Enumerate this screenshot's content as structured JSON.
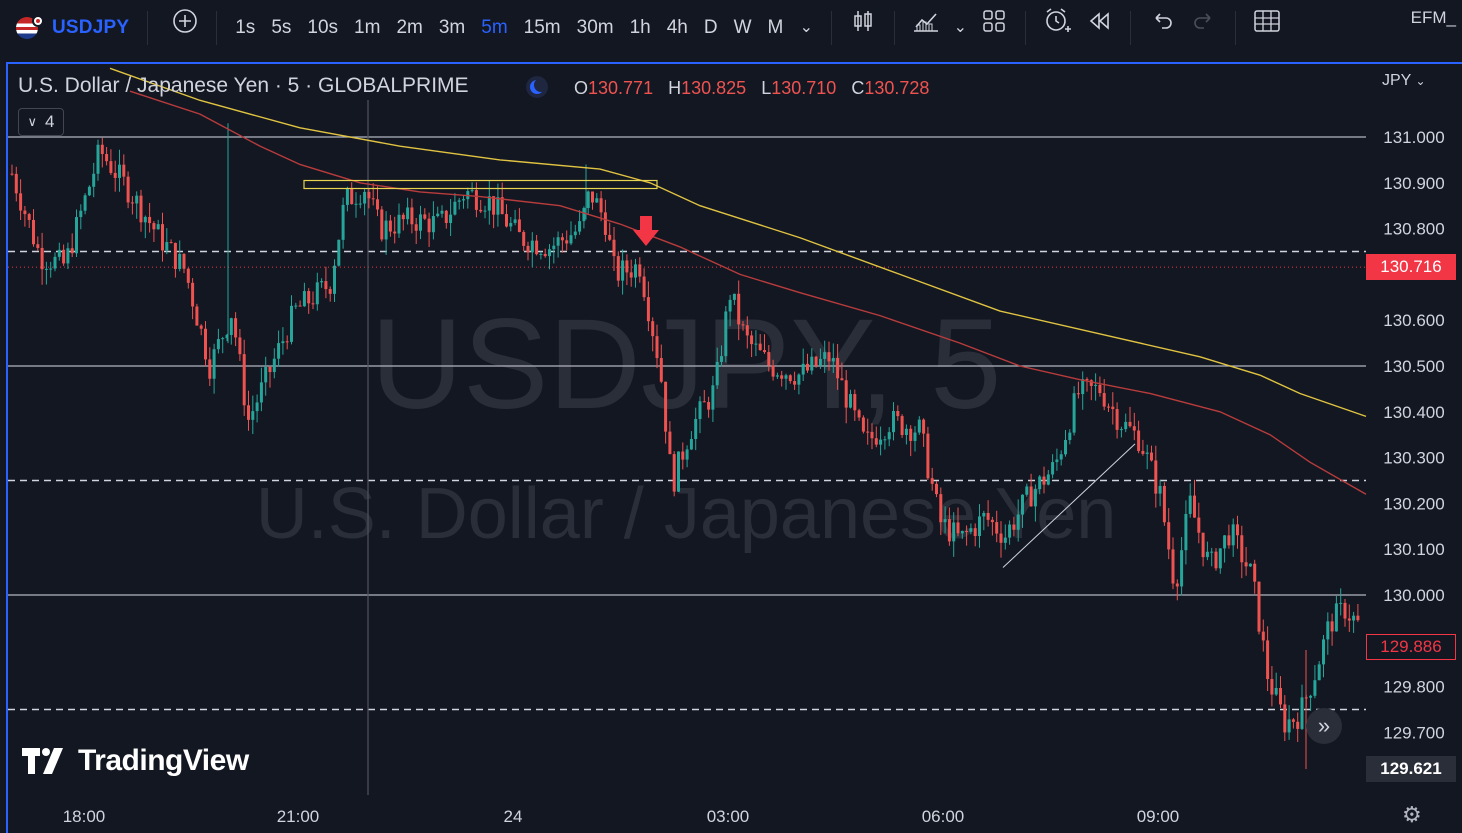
{
  "toolbar": {
    "symbol": "USDJPY",
    "intervals": [
      "1s",
      "5s",
      "10s",
      "1m",
      "2m",
      "3m",
      "5m",
      "15m",
      "30m",
      "1h",
      "4h",
      "D",
      "W",
      "M"
    ],
    "active_interval": "5m",
    "account": "EFM_"
  },
  "legend": {
    "title": "U.S. Dollar / Japanese Yen · 5 · GLOBALPRIME",
    "open_label": "O",
    "open": "130.771",
    "high_label": "H",
    "high": "130.825",
    "low_label": "L",
    "low": "130.710",
    "close_label": "C",
    "close": "130.728",
    "indicators_count": "4"
  },
  "watermark": {
    "symbol_interval": "USDJPY, 5",
    "description": "U.S. Dollar / Japanese Yen"
  },
  "price_axis": {
    "currency": "JPY",
    "ticks": [
      "131.000",
      "130.900",
      "130.800",
      "130.600",
      "130.500",
      "130.400",
      "130.300",
      "130.200",
      "130.100",
      "130.000",
      "129.800",
      "129.700"
    ],
    "last_price": "130.716",
    "ref_price": "129.886",
    "low_price": "129.621"
  },
  "time_axis": {
    "labels": [
      "18:00",
      "21:00",
      "24",
      "03:00",
      "06:00",
      "09:00"
    ]
  },
  "branding": {
    "logo_text": "TradingView"
  },
  "chart_data": {
    "type": "candlestick",
    "x_labels": [
      "18:00",
      "21:00",
      "24",
      "03:00",
      "06:00",
      "09:00"
    ],
    "ylim": [
      129.59,
      131.15
    ],
    "up_color": "#26a69a",
    "down_color": "#ef5350",
    "horizontal_levels_solid": [
      131.0,
      130.5,
      130.0
    ],
    "horizontal_levels_dashed": [
      130.75,
      130.25,
      129.75
    ],
    "ma_long_color": "#e0c341",
    "ma_short_color": "#b83c3c",
    "current_price": 130.716,
    "ref_price": 129.886,
    "low_price": 129.621
  }
}
